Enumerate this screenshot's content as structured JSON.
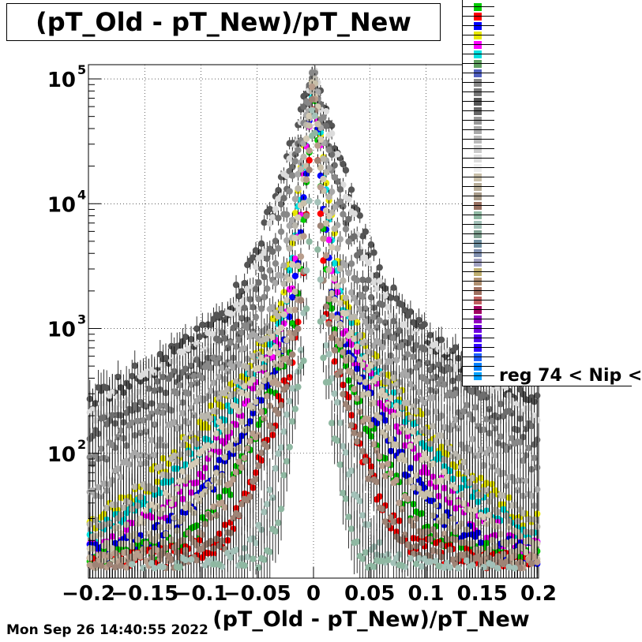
{
  "title": "(pT_Old - pT_New)/pT_New",
  "timestamp": "Mon Sep 26 14:40:55 2022",
  "chart_data": {
    "type": "scatter",
    "title": "(pT_Old - pT_New)/pT_New",
    "xlabel": "(pT_Old - pT_New)/pT_New",
    "ylabel": "",
    "xlim": [
      -0.2,
      0.2
    ],
    "ylim": [
      10,
      130000
    ],
    "y_scale": "log",
    "grid": true,
    "legend_position": "top-right",
    "x_tick_labels": [
      "−0.2",
      "−0.15",
      "−0.1",
      "−0.05",
      "0",
      "0.05",
      "0.1",
      "0.15",
      "0.2"
    ],
    "x_ticks": [
      -0.2,
      -0.15,
      -0.1,
      -0.05,
      0,
      0.05,
      0.1,
      0.15,
      0.2
    ],
    "y_ticks": [
      100,
      1000,
      10000,
      100000
    ],
    "y_tick_labels": [
      {
        "base": "10",
        "exp": "2"
      },
      {
        "base": "10",
        "exp": "3"
      },
      {
        "base": "10",
        "exp": "4"
      },
      {
        "base": "10",
        "exp": "5"
      }
    ],
    "series": [
      {
        "name": "",
        "color": "#8fb8a2",
        "width": 0.003,
        "tail": 12
      },
      {
        "name": "",
        "color": "#a3c1b8",
        "width": 0.004,
        "tail": 14
      },
      {
        "name": "",
        "color": "#9e8476",
        "width": 0.006,
        "tail": 16
      },
      {
        "name": "",
        "color": "#b89d8c",
        "width": 0.008,
        "tail": 18
      },
      {
        "name": "",
        "color": "#c8bfa9",
        "width": 0.01,
        "tail": 20
      },
      {
        "name": "",
        "color": "#d4cbb6",
        "width": 0.013,
        "tail": 22
      },
      {
        "name": "",
        "color": "#b9b6ad",
        "width": 0.016,
        "tail": 24
      },
      {
        "name": "",
        "color": "#a8a8a8",
        "width": 0.02,
        "tail": 26
      },
      {
        "name": "",
        "color": "#888888",
        "width": 0.025,
        "tail": 28
      },
      {
        "name": "",
        "color": "#6e6e6e",
        "width": 0.03,
        "tail": 30
      },
      {
        "name": "",
        "color": "#dcdcdc",
        "width": 0.035,
        "tail": 32
      },
      {
        "name": "",
        "color": "#555555",
        "width": 0.04,
        "tail": 34
      },
      {
        "name": "",
        "color": "#ff0000",
        "width": 0.006,
        "tail": 18
      },
      {
        "name": "",
        "color": "#00cc00",
        "width": 0.008,
        "tail": 20
      },
      {
        "name": "",
        "color": "#0000ff",
        "width": 0.01,
        "tail": 22
      },
      {
        "name": "",
        "color": "#ff00ff",
        "width": 0.012,
        "tail": 24
      },
      {
        "name": "",
        "color": "#00e0e0",
        "width": 0.014,
        "tail": 26
      },
      {
        "name": "",
        "color": "#e8e800",
        "width": 0.016,
        "tail": 28
      }
    ]
  },
  "legend": {
    "last_label": "reg 74 < Nip <",
    "swatch_colors": [
      "#00cc00",
      "#ff0000",
      "#0000ff",
      "#e8e800",
      "#ff00ff",
      "#00e0e0",
      "#60a060",
      "#5060c0",
      "#888888",
      "#777777",
      "#555555",
      "#666666",
      "#999999",
      "#aaaaaa",
      "#bbbbbb",
      "#cccccc",
      "#dddddd",
      "#eeeeee",
      "#c8bfa9",
      "#b8ad98",
      "#a89a88",
      "#987060",
      "#8fb8a2",
      "#a3c1b8",
      "#7fa090",
      "#6f8fa0",
      "#8090b0",
      "#a0a0c0",
      "#c0b070",
      "#b09070",
      "#a07060",
      "#c06060",
      "#a00060",
      "#9000c0",
      "#7000e0",
      "#5000f0",
      "#3000ff",
      "#2060ff",
      "#0080ff",
      "#00a0ff"
    ]
  }
}
